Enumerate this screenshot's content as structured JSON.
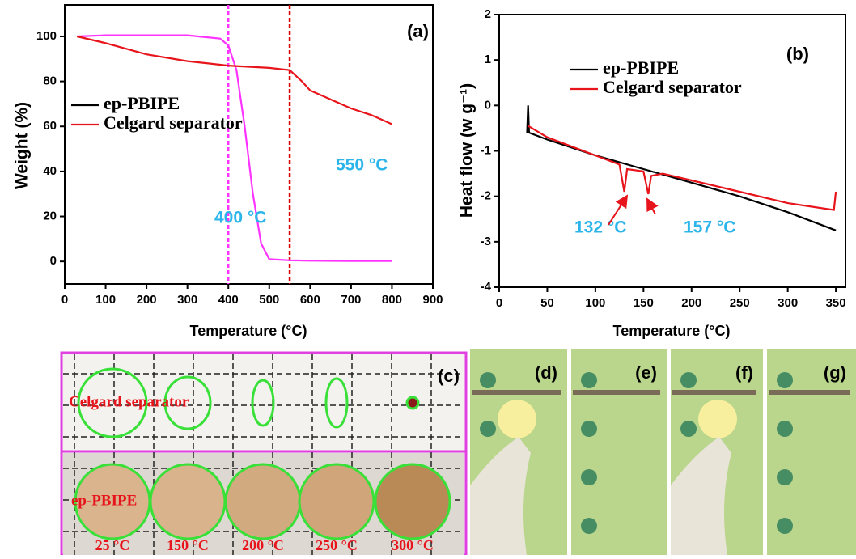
{
  "chart_data": [
    {
      "type": "line",
      "label": "(a)",
      "xlabel": "Temperature (°C)",
      "ylabel": "Weight (%)",
      "xlim": [
        0,
        900
      ],
      "xticks": [
        0,
        100,
        200,
        300,
        400,
        500,
        600,
        700,
        800,
        900
      ],
      "ylim": [
        -10,
        114
      ],
      "yticks": [
        0,
        20,
        40,
        60,
        80,
        100
      ],
      "vlines": [
        {
          "x": 400,
          "color": "#ff33ff"
        },
        {
          "x": 550,
          "color": "#dd0000"
        }
      ],
      "annotations": [
        "400 °C",
        "550 °C"
      ],
      "series": [
        {
          "name": "ep-PBIPE",
          "color": "#ff33ff",
          "legend_color": "#000000",
          "x": [
            30,
            100,
            200,
            300,
            380,
            400,
            420,
            440,
            460,
            480,
            500,
            550,
            600,
            700,
            800
          ],
          "values": [
            100,
            100.5,
            100.5,
            100.5,
            99,
            96,
            85,
            60,
            30,
            8,
            1,
            0.5,
            0.3,
            0.2,
            0.2
          ]
        },
        {
          "name": "Celgard separator",
          "color": "#e8141b",
          "legend_color": "#e8141b",
          "x": [
            30,
            100,
            200,
            300,
            400,
            500,
            550,
            580,
            600,
            650,
            700,
            750,
            800
          ],
          "values": [
            100,
            97,
            92,
            89,
            87,
            86,
            85,
            80,
            76,
            72,
            68,
            65,
            61
          ]
        }
      ]
    },
    {
      "type": "line",
      "label": "(b)",
      "xlabel": "Temperature (°C)",
      "ylabel": "Heat flow (w g⁻¹)",
      "xlim": [
        0,
        360
      ],
      "xticks": [
        0,
        50,
        100,
        150,
        200,
        250,
        300,
        350
      ],
      "ylim": [
        -4,
        2
      ],
      "yticks": [
        -4,
        -3,
        -2,
        -1,
        0,
        1,
        2
      ],
      "annotations": [
        "132 °C",
        "157 °C"
      ],
      "series": [
        {
          "name": "ep-PBIPE",
          "color": "#000000",
          "legend_color": "#000000",
          "x": [
            29,
            30,
            31,
            50,
            100,
            150,
            200,
            250,
            300,
            350
          ],
          "values": [
            -0.6,
            0,
            -0.6,
            -0.75,
            -1.1,
            -1.4,
            -1.7,
            -2.0,
            -2.35,
            -2.75
          ]
        },
        {
          "name": "Celgard separator",
          "color": "#e8141b",
          "legend_color": "#e8141b",
          "x": [
            30,
            50,
            100,
            125,
            130,
            133,
            150,
            155,
            158,
            170,
            200,
            250,
            300,
            348,
            350
          ],
          "values": [
            -0.45,
            -0.7,
            -1.1,
            -1.3,
            -1.9,
            -1.4,
            -1.45,
            -1.95,
            -1.55,
            -1.5,
            -1.65,
            -1.9,
            -2.15,
            -2.3,
            -1.9
          ]
        }
      ]
    }
  ],
  "panel_c": {
    "label": "(c)",
    "rows": [
      "Celgard separator",
      "ep-PBIPE"
    ],
    "temperatures": [
      "25 °C",
      "150 °C",
      "200 °C",
      "250 °C",
      "300 °C"
    ]
  },
  "photo_labels": [
    "(d)",
    "(e)",
    "(f)",
    "(g)"
  ]
}
